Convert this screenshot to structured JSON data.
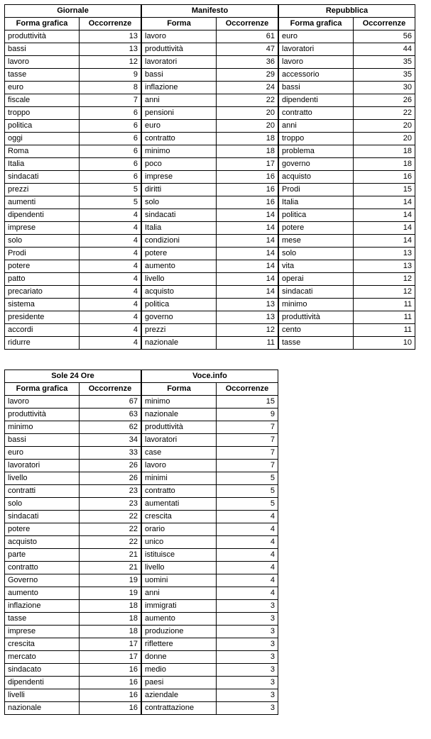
{
  "tables": {
    "top": [
      {
        "group_title": "Giornale",
        "col1": "Forma grafica",
        "col2": "Occorrenze",
        "rows": [
          [
            "produttività",
            13
          ],
          [
            "bassi",
            13
          ],
          [
            "lavoro",
            12
          ],
          [
            "tasse",
            9
          ],
          [
            "euro",
            8
          ],
          [
            "fiscale",
            7
          ],
          [
            "troppo",
            6
          ],
          [
            "politica",
            6
          ],
          [
            "oggi",
            6
          ],
          [
            "Roma",
            6
          ],
          [
            "Italia",
            6
          ],
          [
            "sindacati",
            6
          ],
          [
            "prezzi",
            5
          ],
          [
            "aumenti",
            5
          ],
          [
            "dipendenti",
            4
          ],
          [
            "imprese",
            4
          ],
          [
            "solo",
            4
          ],
          [
            "Prodi",
            4
          ],
          [
            "potere",
            4
          ],
          [
            "patto",
            4
          ],
          [
            "precariato",
            4
          ],
          [
            "sistema",
            4
          ],
          [
            "presidente",
            4
          ],
          [
            "accordi",
            4
          ],
          [
            "ridurre",
            4
          ]
        ]
      },
      {
        "group_title": "Manifesto",
        "col1": "Forma",
        "col2": "Occorrenze",
        "rows": [
          [
            "lavoro",
            61
          ],
          [
            "produttività",
            47
          ],
          [
            "lavoratori",
            36
          ],
          [
            "bassi",
            29
          ],
          [
            "inflazione",
            24
          ],
          [
            "anni",
            22
          ],
          [
            "pensioni",
            20
          ],
          [
            "euro",
            20
          ],
          [
            "contratto",
            18
          ],
          [
            "minimo",
            18
          ],
          [
            "poco",
            17
          ],
          [
            "imprese",
            16
          ],
          [
            "diritti",
            16
          ],
          [
            "solo",
            16
          ],
          [
            "sindacati",
            14
          ],
          [
            "Italia",
            14
          ],
          [
            "condizioni",
            14
          ],
          [
            "potere",
            14
          ],
          [
            "aumento",
            14
          ],
          [
            "livello",
            14
          ],
          [
            "acquisto",
            14
          ],
          [
            "politica",
            13
          ],
          [
            "governo",
            13
          ],
          [
            "prezzi",
            12
          ],
          [
            "nazionale",
            11
          ]
        ]
      },
      {
        "group_title": "Repubblica",
        "col1": "Forma grafica",
        "col2": "Occorrenze",
        "rows": [
          [
            "euro",
            56
          ],
          [
            "lavoratori",
            44
          ],
          [
            "lavoro",
            35
          ],
          [
            "accessorio",
            35
          ],
          [
            "bassi",
            30
          ],
          [
            "dipendenti",
            26
          ],
          [
            "contratto",
            22
          ],
          [
            "anni",
            20
          ],
          [
            "troppo",
            20
          ],
          [
            "problema",
            18
          ],
          [
            "governo",
            18
          ],
          [
            "acquisto",
            16
          ],
          [
            "Prodi",
            15
          ],
          [
            "Italia",
            14
          ],
          [
            "politica",
            14
          ],
          [
            "potere",
            14
          ],
          [
            "mese",
            14
          ],
          [
            "solo",
            13
          ],
          [
            "vita",
            13
          ],
          [
            "operai",
            12
          ],
          [
            "sindacati",
            12
          ],
          [
            "minimo",
            11
          ],
          [
            "produttività",
            11
          ],
          [
            "cento",
            11
          ],
          [
            "tasse",
            10
          ]
        ]
      }
    ],
    "bottom": [
      {
        "group_title": "Sole 24 Ore",
        "col1": "Forma grafica",
        "col2": "Occorrenze",
        "rows": [
          [
            "lavoro",
            67
          ],
          [
            "produttività",
            63
          ],
          [
            "minimo",
            62
          ],
          [
            "bassi",
            34
          ],
          [
            "euro",
            33
          ],
          [
            "lavoratori",
            26
          ],
          [
            "livello",
            26
          ],
          [
            "contratti",
            23
          ],
          [
            "solo",
            23
          ],
          [
            "sindacati",
            22
          ],
          [
            "potere",
            22
          ],
          [
            "acquisto",
            22
          ],
          [
            "parte",
            21
          ],
          [
            "contratto",
            21
          ],
          [
            "Governo",
            19
          ],
          [
            "aumento",
            19
          ],
          [
            "inflazione",
            18
          ],
          [
            "tasse",
            18
          ],
          [
            "imprese",
            18
          ],
          [
            "crescita",
            17
          ],
          [
            "mercato",
            17
          ],
          [
            "sindacato",
            16
          ],
          [
            "dipendenti",
            16
          ],
          [
            "livelli",
            16
          ],
          [
            "nazionale",
            16
          ]
        ]
      },
      {
        "group_title": "Voce.info",
        "col1": "Forma",
        "col2": "Occorrenze",
        "rows": [
          [
            "minimo",
            15
          ],
          [
            "nazionale",
            9
          ],
          [
            "produttività",
            7
          ],
          [
            "lavoratori",
            7
          ],
          [
            "case",
            7
          ],
          [
            "lavoro",
            7
          ],
          [
            "minimi",
            5
          ],
          [
            "contratto",
            5
          ],
          [
            "aumentati",
            5
          ],
          [
            "crescita",
            4
          ],
          [
            "orario",
            4
          ],
          [
            "unico",
            4
          ],
          [
            "istituisce",
            4
          ],
          [
            "livello",
            4
          ],
          [
            "uomini",
            4
          ],
          [
            "anni",
            4
          ],
          [
            "immigrati",
            3
          ],
          [
            "aumento",
            3
          ],
          [
            "produzione",
            3
          ],
          [
            "riflettere",
            3
          ],
          [
            "donne",
            3
          ],
          [
            "medio",
            3
          ],
          [
            "paesi",
            3
          ],
          [
            "aziendale",
            3
          ],
          [
            "contrattazione",
            3
          ]
        ]
      }
    ]
  }
}
